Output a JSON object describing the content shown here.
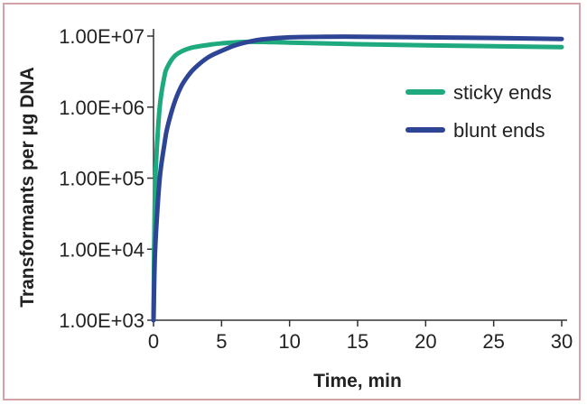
{
  "chart_data": {
    "type": "line",
    "title": "",
    "xlabel": "Time, min",
    "ylabel": "Transformants per µg DNA",
    "y_scale": "log",
    "xlim": [
      0,
      30
    ],
    "ylim": [
      1000,
      10000000
    ],
    "x_ticks": [
      0,
      5,
      10,
      15,
      20,
      25,
      30
    ],
    "x_tick_labels": [
      "0",
      "5",
      "10",
      "15",
      "20",
      "25",
      "30"
    ],
    "y_ticks": [
      1000,
      10000,
      100000,
      1000000,
      10000000
    ],
    "y_tick_labels": [
      "1.00E+03",
      "1.00E+04",
      "1.00E+05",
      "1.00E+06",
      "1.00E+07"
    ],
    "grid": false,
    "legend_position": "right",
    "series": [
      {
        "name": "sticky ends",
        "color": "#1eaa7e",
        "x": [
          0,
          0.1,
          0.3,
          0.5,
          0.8,
          1,
          1.5,
          2,
          2.5,
          3,
          4,
          5,
          7,
          10,
          15,
          20,
          25,
          30
        ],
        "y": [
          1000,
          60000,
          400000,
          1200000,
          2700000,
          3600000,
          5100000,
          6000000,
          6600000,
          7000000,
          7500000,
          7900000,
          8300000,
          8100000,
          7700000,
          7400000,
          7200000,
          7000000
        ]
      },
      {
        "name": "blunt ends",
        "color": "#2e4596",
        "x": [
          0,
          0.1,
          0.3,
          0.5,
          0.8,
          1,
          1.5,
          2,
          2.5,
          3,
          4,
          5,
          6,
          7,
          8,
          10,
          13,
          15,
          20,
          25,
          30
        ],
        "y": [
          1000,
          8000,
          40000,
          120000,
          300000,
          500000,
          1100000,
          1900000,
          2700000,
          3500000,
          5000000,
          6200000,
          7400000,
          8300000,
          9000000,
          9600000,
          9800000,
          9800000,
          9600000,
          9400000,
          9100000
        ]
      }
    ]
  }
}
